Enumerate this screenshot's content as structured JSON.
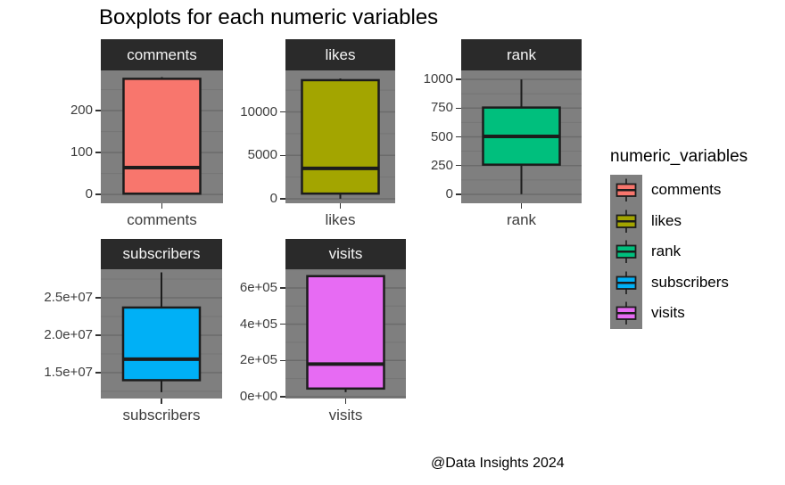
{
  "title": "Boxplots for each numeric variables",
  "caption": "@Data Insights 2024",
  "style": {
    "background": "#ffffff",
    "strip_bg": "#2a2a2a",
    "strip_text": "#f5f5f5",
    "panel_bg": "#7f7f7f",
    "grid_major": "#6b6b6b",
    "grid_minor": "#757575",
    "line": "#1c1c1c",
    "axis_text": "#3d3d3d",
    "tick_mark": "#333333"
  },
  "legend": {
    "title": "numeric_variables",
    "position": "right",
    "items": [
      {
        "label": "comments",
        "color": "#F8766D"
      },
      {
        "label": "likes",
        "color": "#A3A500"
      },
      {
        "label": "rank",
        "color": "#00BF7D"
      },
      {
        "label": "subscribers",
        "color": "#00B0F6"
      },
      {
        "label": "visits",
        "color": "#E76BF3"
      }
    ]
  },
  "chart_data": [
    {
      "type": "boxplot",
      "name": "comments",
      "strip_label": "comments",
      "x_label": "comments",
      "color": "#F8766D",
      "y_domain": [
        -21,
        296
      ],
      "y_ticks": [
        {
          "value": 0,
          "label": "0"
        },
        {
          "value": 100,
          "label": "100"
        },
        {
          "value": 200,
          "label": "200"
        }
      ],
      "y_minor_ticks": [
        50,
        150,
        250
      ],
      "stats": {
        "min": 0,
        "q1": 2,
        "median": 64,
        "q3": 276,
        "max": 280
      }
    },
    {
      "type": "boxplot",
      "name": "likes",
      "strip_label": "likes",
      "x_label": "likes",
      "color": "#A3A500",
      "y_domain": [
        -513,
        14770
      ],
      "y_ticks": [
        {
          "value": 0,
          "label": "0"
        },
        {
          "value": 5000,
          "label": "5000"
        },
        {
          "value": 10000,
          "label": "10000"
        }
      ],
      "y_minor_ticks": [
        2500,
        7500,
        12500
      ],
      "stats": {
        "min": 10,
        "q1": 600,
        "median": 3500,
        "q3": 13650,
        "max": 13850
      }
    },
    {
      "type": "boxplot",
      "name": "rank",
      "strip_label": "rank",
      "x_label": "rank",
      "color": "#00BF7D",
      "y_domain": [
        -78,
        1078
      ],
      "y_ticks": [
        {
          "value": 0,
          "label": "0"
        },
        {
          "value": 250,
          "label": "250"
        },
        {
          "value": 500,
          "label": "500"
        },
        {
          "value": 750,
          "label": "750"
        },
        {
          "value": 1000,
          "label": "1000"
        }
      ],
      "y_minor_ticks": [
        125,
        375,
        625,
        875
      ],
      "stats": {
        "min": 2,
        "q1": 258,
        "median": 504,
        "q3": 755,
        "max": 999
      }
    },
    {
      "type": "boxplot",
      "name": "subscribers",
      "strip_label": "subscribers",
      "x_label": "subscribers",
      "color": "#00B0F6",
      "y_domain": [
        11550000,
        28810000
      ],
      "y_ticks": [
        {
          "value": 15000000,
          "label": "1.5e+07"
        },
        {
          "value": 20000000,
          "label": "2.0e+07"
        },
        {
          "value": 25000000,
          "label": "2.5e+07"
        }
      ],
      "y_minor_ticks": [
        12500000,
        17500000,
        22500000,
        27500000
      ],
      "stats": {
        "min": 12400000,
        "q1": 14000000,
        "median": 16800000,
        "q3": 23700000,
        "max": 28400000
      }
    },
    {
      "type": "boxplot",
      "name": "visits",
      "strip_label": "visits",
      "x_label": "visits",
      "color": "#E76BF3",
      "y_domain": [
        -10000,
        703000
      ],
      "y_ticks": [
        {
          "value": 0,
          "label": "0e+00"
        },
        {
          "value": 200000,
          "label": "2e+05"
        },
        {
          "value": 400000,
          "label": "4e+05"
        },
        {
          "value": 600000,
          "label": "6e+05"
        }
      ],
      "y_minor_ticks": [
        100000,
        300000,
        500000,
        700000
      ],
      "stats": {
        "min": 25000,
        "q1": 45000,
        "median": 180000,
        "q3": 665000,
        "max": 670000
      }
    }
  ]
}
